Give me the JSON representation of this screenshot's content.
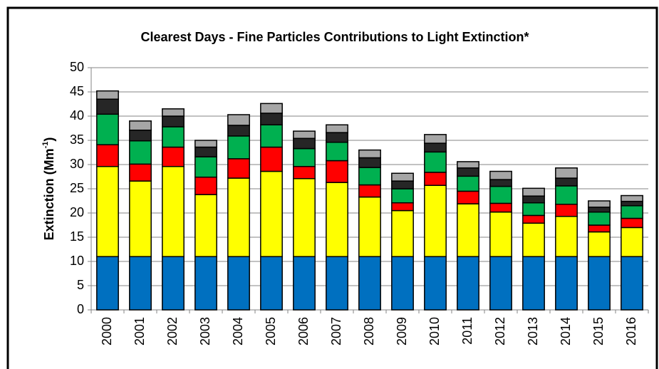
{
  "chart_data": {
    "type": "stacked_bar",
    "title": "Clearest Days - Fine Particles Contributions to Light Extinction*",
    "y_label": {
      "text": "Extinction (Mm",
      "sup": "-1",
      "end": ")"
    },
    "categories": [
      "2000",
      "2001",
      "2002",
      "2003",
      "2004",
      "2005",
      "2006",
      "2007",
      "2008",
      "2009",
      "2010",
      "2011",
      "2012",
      "2013",
      "2014",
      "2015",
      "2016"
    ],
    "series": [
      {
        "color": "#0070c0",
        "values": [
          11,
          11,
          11,
          11,
          11,
          11,
          11,
          11,
          11,
          11,
          11,
          11,
          11,
          11,
          11,
          11,
          11
        ]
      },
      {
        "color": "#ffff00",
        "values": [
          18.6,
          15.6,
          18.6,
          12.8,
          16.2,
          17.6,
          16.1,
          15.3,
          12.3,
          9.5,
          14.7,
          10.9,
          9.2,
          6.9,
          8.3,
          5.1,
          6.0
        ]
      },
      {
        "color": "#ff0000",
        "values": [
          4.5,
          3.5,
          4.0,
          3.6,
          4.0,
          5.0,
          2.5,
          4.5,
          2.5,
          1.6,
          2.7,
          2.6,
          1.8,
          1.6,
          2.5,
          1.4,
          1.9
        ]
      },
      {
        "color": "#00b050",
        "values": [
          6.3,
          4.8,
          4.2,
          4.2,
          4.7,
          4.6,
          3.7,
          3.8,
          3.6,
          2.9,
          4.2,
          3.1,
          3.5,
          2.6,
          3.8,
          2.7,
          2.6
        ]
      },
      {
        "color": "#262626",
        "values": [
          3.1,
          2.2,
          2.2,
          2.0,
          2.2,
          2.4,
          2.1,
          2.0,
          2.0,
          1.6,
          1.8,
          1.7,
          1.4,
          1.4,
          1.6,
          1.0,
          0.9
        ]
      },
      {
        "color": "#a6a6a6",
        "values": [
          1.7,
          1.9,
          1.5,
          1.4,
          2.2,
          2.0,
          1.5,
          1.6,
          1.6,
          1.6,
          1.8,
          1.3,
          1.7,
          1.6,
          2.1,
          1.3,
          1.2
        ]
      }
    ],
    "ylim": [
      0,
      50
    ],
    "yticks": [
      0,
      5,
      10,
      15,
      20,
      25,
      30,
      35,
      40,
      45,
      50
    ],
    "grid": true
  }
}
